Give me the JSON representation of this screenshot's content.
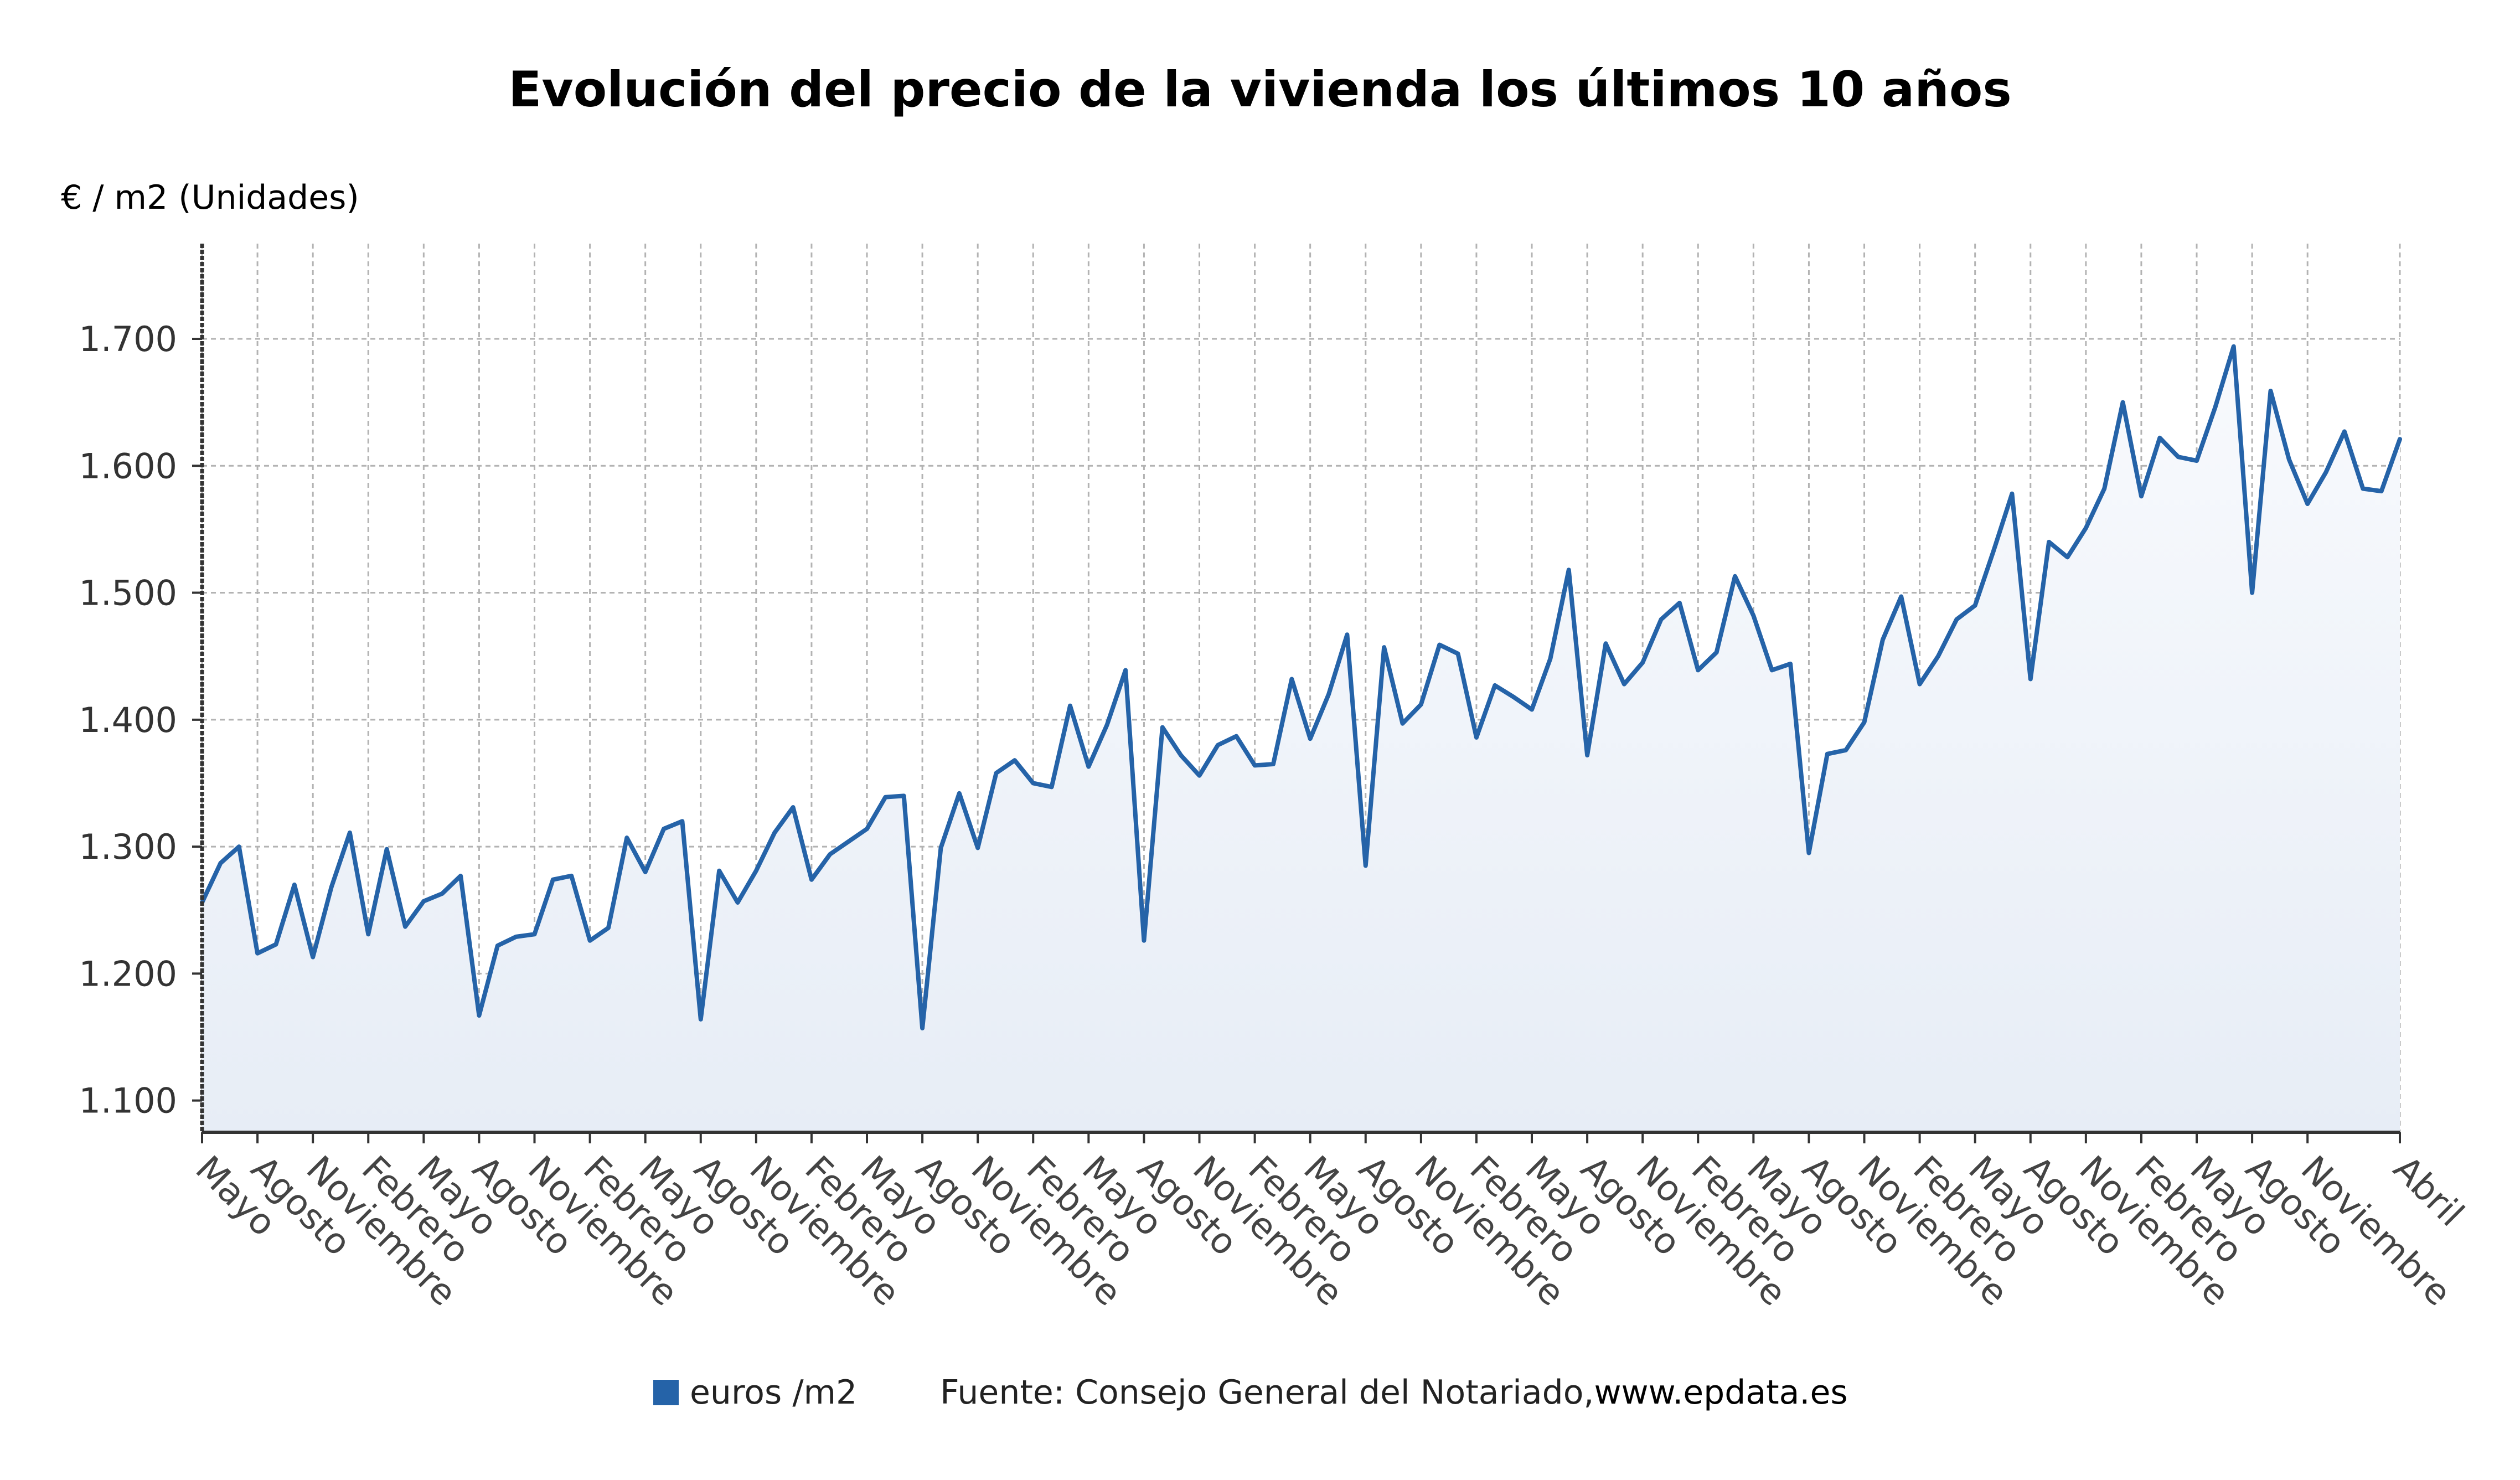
{
  "chart_data": {
    "type": "area",
    "title": "Evolución del precio de la vivienda los últimos 10 años",
    "ylabel": "€ / m2 (Unidades)",
    "xlabel": "",
    "ylim": [
      1075,
      1775
    ],
    "yticks": [
      1100,
      1200,
      1300,
      1400,
      1500,
      1600,
      1700
    ],
    "ytick_labels": [
      "1.100",
      "1.200",
      "1.300",
      "1.400",
      "1.500",
      "1.600",
      "1.700"
    ],
    "xtick_labels": [
      "Mayo",
      "Agosto",
      "Noviembre",
      "Febrero",
      "Mayo",
      "Agosto",
      "Noviembre",
      "Febrero",
      "Mayo",
      "Agosto",
      "Noviembre",
      "Febrero",
      "Mayo",
      "Agosto",
      "Noviembre",
      "Febrero",
      "Mayo",
      "Agosto",
      "Noviembre",
      "Febrero",
      "Mayo",
      "Agosto",
      "Noviembre",
      "Febrero",
      "Mayo",
      "Agosto",
      "Noviembre",
      "Febrero",
      "Mayo",
      "Agosto",
      "Noviembre",
      "Febrero",
      "Mayo",
      "Agosto",
      "Noviembre",
      "Febrero",
      "Mayo",
      "Agosto",
      "Noviembre",
      "Abril"
    ],
    "grid": true,
    "color": "#2563a8",
    "series": [
      {
        "name": "euros /m2",
        "values": [
          1256,
          1287,
          1300,
          1216,
          1223,
          1270,
          1213,
          1268,
          1311,
          1231,
          1298,
          1237,
          1257,
          1263,
          1277,
          1167,
          1222,
          1229,
          1231,
          1274,
          1277,
          1226,
          1236,
          1307,
          1280,
          1314,
          1320,
          1164,
          1281,
          1256,
          1281,
          1311,
          1331,
          1274,
          1294,
          1304,
          1314,
          1339,
          1340,
          1157,
          1299,
          1342,
          1299,
          1358,
          1368,
          1350,
          1347,
          1411,
          1363,
          1396,
          1439,
          1226,
          1394,
          1372,
          1356,
          1380,
          1387,
          1364,
          1365,
          1432,
          1385,
          1420,
          1467,
          1285,
          1457,
          1397,
          1412,
          1459,
          1452,
          1386,
          1427,
          1418,
          1408,
          1448,
          1518,
          1372,
          1460,
          1428,
          1445,
          1479,
          1492,
          1439,
          1453,
          1513,
          1482,
          1439,
          1444,
          1295,
          1373,
          1376,
          1398,
          1463,
          1497,
          1428,
          1450,
          1479,
          1490,
          1533,
          1578,
          1432,
          1540,
          1528,
          1551,
          1582,
          1650,
          1576,
          1622,
          1607,
          1604,
          1646,
          1694,
          1500,
          1659,
          1605,
          1570,
          1595,
          1627,
          1582,
          1580,
          1621
        ]
      }
    ]
  },
  "legend": {
    "swatch_color": "#2563a8",
    "label": "euros /m2",
    "source_prefix": "Fuente: Consejo General del Notariado, ",
    "source_site": "www.epdata.es"
  }
}
